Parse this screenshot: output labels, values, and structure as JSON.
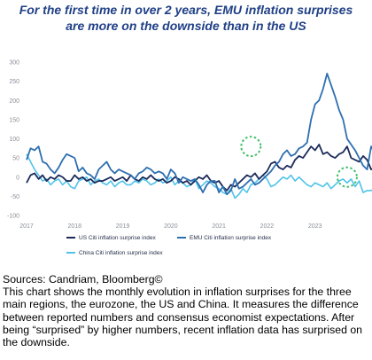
{
  "title_line1": "For the first time in over 2 years, EMU inflation surprises",
  "title_line2": "are more on the downside than in the US",
  "sources": "Sources: Candriam, Bloomberg©",
  "description": "This chart shows the monthly evolution in inflation surprises for the three main regions, the eurozone, the US and China. It measures the difference between reported numbers and consensus economist expectations. After being “surprised” by higher numbers, recent inflation data has surprised on the downside.",
  "colors": {
    "us": "#1c2b5a",
    "emu": "#2e6fb0",
    "china": "#4fc3ea",
    "highlight": "#3fbf6a"
  },
  "chart_data": {
    "type": "line",
    "x_start": "2017-01",
    "x_step": "month",
    "ylim": [
      -100,
      300
    ],
    "yticks": [
      -100,
      -50,
      0,
      50,
      100,
      150,
      200,
      250,
      300
    ],
    "xticks": [
      "2017",
      "2018",
      "2019",
      "2020",
      "2021",
      "2022",
      "2023"
    ],
    "grid": false,
    "legend_position": "bottom",
    "series": [
      {
        "name": "US Citi inflation surprise index",
        "values": [
          -15,
          5,
          10,
          -5,
          5,
          -10,
          0,
          -5,
          5,
          0,
          -10,
          -10,
          5,
          -5,
          0,
          -10,
          -5,
          -15,
          -10,
          -10,
          -5,
          0,
          -10,
          -5,
          0,
          -10,
          5,
          -5,
          -10,
          0,
          -5,
          5,
          -5,
          -10,
          -5,
          -15,
          -10,
          0,
          -5,
          -15,
          -10,
          -20,
          -10,
          0,
          -5,
          5,
          -10,
          -15,
          -10,
          -25,
          -35,
          -20,
          -25,
          -15,
          -5,
          5,
          0,
          10,
          -5,
          5,
          15,
          35,
          40,
          25,
          20,
          30,
          25,
          45,
          55,
          50,
          65,
          80,
          70,
          85,
          60,
          65,
          55,
          50,
          60,
          65,
          80,
          50,
          45,
          40,
          55,
          45,
          20,
          25,
          30,
          35,
          10,
          -5,
          -10,
          -10,
          -15,
          -5,
          5,
          0
        ]
      },
      {
        "name": "EMU Citi inflation surprise index",
        "values": [
          45,
          75,
          70,
          80,
          40,
          35,
          20,
          10,
          25,
          45,
          60,
          55,
          50,
          15,
          25,
          10,
          5,
          -5,
          20,
          30,
          40,
          20,
          10,
          20,
          15,
          10,
          5,
          -5,
          10,
          15,
          25,
          20,
          10,
          15,
          10,
          -5,
          20,
          10,
          -15,
          0,
          -5,
          -10,
          -5,
          -20,
          -40,
          -20,
          -10,
          -10,
          -40,
          -25,
          -45,
          -35,
          -5,
          -30,
          -25,
          -15,
          -5,
          -20,
          -15,
          -5,
          5,
          15,
          30,
          40,
          60,
          70,
          55,
          60,
          75,
          80,
          90,
          150,
          190,
          200,
          230,
          270,
          240,
          210,
          175,
          150,
          100,
          85,
          70,
          50,
          30,
          20,
          80,
          60,
          20,
          -5,
          25,
          0,
          -10,
          5,
          -15,
          -15,
          5,
          -5
        ]
      },
      {
        "name": "China Citi inflation surprise index",
        "values": [
          60,
          40,
          20,
          5,
          -10,
          -5,
          -20,
          -10,
          -5,
          -20,
          -10,
          -25,
          -30,
          -10,
          -5,
          0,
          -20,
          -10,
          -5,
          -15,
          -20,
          -10,
          -25,
          -15,
          -10,
          -20,
          -20,
          -10,
          -15,
          -5,
          -10,
          -20,
          -15,
          -5,
          -15,
          -10,
          0,
          -20,
          -10,
          -15,
          -25,
          -20,
          -5,
          -30,
          -20,
          -10,
          -15,
          -25,
          -30,
          -40,
          -45,
          -30,
          -55,
          -45,
          -30,
          -40,
          -20,
          -15,
          -5,
          5,
          -5,
          -25,
          -20,
          -10,
          0,
          -5,
          5,
          -10,
          0,
          -10,
          -20,
          -25,
          -15,
          -20,
          -25,
          -15,
          -30,
          -20,
          -10,
          -5,
          -15,
          -5,
          -25,
          -10,
          -40,
          -35,
          -35,
          -30,
          -55,
          -50,
          -65,
          -65,
          -60,
          -70,
          -65,
          -60,
          -55,
          -60
        ]
      }
    ],
    "highlights": [
      {
        "x": "2021-09",
        "y": 80
      },
      {
        "x": "2023-09",
        "y": 0
      }
    ]
  }
}
